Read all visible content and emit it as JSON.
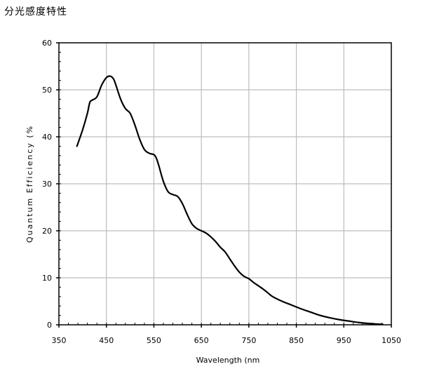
{
  "heading": "分光感度特性",
  "chart_data": {
    "type": "line",
    "title": "",
    "xlabel": "Wavelength (nm",
    "ylabel": "Quantum Efficiency (%",
    "xlim": [
      350,
      1050
    ],
    "ylim": [
      0,
      60
    ],
    "x_ticks": [
      350,
      450,
      550,
      650,
      750,
      850,
      950,
      1050
    ],
    "y_ticks": [
      0,
      10,
      20,
      30,
      40,
      50,
      60
    ],
    "x_minor_step": 20,
    "y_minor_step": 2,
    "grid": true,
    "series": [
      {
        "x": [
          388,
          400,
          410,
          415,
          420,
          430,
          440,
          450,
          458,
          465,
          470,
          480,
          490,
          500,
          510,
          520,
          530,
          540,
          550,
          555,
          560,
          570,
          580,
          590,
          600,
          610,
          620,
          630,
          640,
          650,
          660,
          670,
          680,
          690,
          700,
          710,
          720,
          730,
          740,
          750,
          760,
          770,
          780,
          790,
          800,
          820,
          840,
          860,
          880,
          900,
          920,
          940,
          960,
          980,
          1000,
          1020,
          1032
        ],
        "y": [
          38,
          41.5,
          45,
          47.3,
          47.8,
          48.5,
          51,
          52.6,
          52.9,
          52.3,
          51,
          48,
          46,
          45,
          42.5,
          39.5,
          37.3,
          36.5,
          36.2,
          35.5,
          34,
          30.5,
          28.3,
          27.7,
          27.3,
          25.8,
          23.5,
          21.5,
          20.5,
          20,
          19.5,
          18.7,
          17.7,
          16.5,
          15.5,
          14,
          12.5,
          11.2,
          10.3,
          9.8,
          9,
          8.3,
          7.6,
          6.8,
          6,
          5,
          4.2,
          3.4,
          2.7,
          2,
          1.5,
          1.1,
          0.8,
          0.5,
          0.3,
          0.15,
          0.1
        ]
      }
    ]
  }
}
